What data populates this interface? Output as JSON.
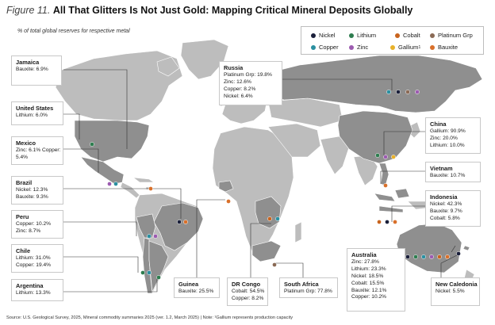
{
  "title": {
    "figure": "Figure 11.",
    "main": "All That Glitters Is Not Just Gold: Mapping Critical Mineral Deposits Globally"
  },
  "subtitle": "% of total global reserves for respective metal",
  "legend": [
    {
      "label": "Nickel",
      "color": "#1a1f3a"
    },
    {
      "label": "Lithium",
      "color": "#2e7d4f"
    },
    {
      "label": "Cobalt",
      "color": "#c8641e"
    },
    {
      "label": "Platinum Grp",
      "color": "#8a6a55"
    },
    {
      "label": "Copper",
      "color": "#2a8fa0"
    },
    {
      "label": "Zinc",
      "color": "#9c5bb0"
    },
    {
      "label": "Gallium",
      "color": "#e8b12a",
      "sup": "1"
    },
    {
      "label": "Bauxite",
      "color": "#d9702a"
    }
  ],
  "countries": [
    {
      "name": "Jamaica",
      "lines": [
        "Bauxite: 6.9%"
      ]
    },
    {
      "name": "United States",
      "lines": [
        "Lithium: 6.0%"
      ]
    },
    {
      "name": "Mexico",
      "lines": [
        "Zinc: 6.1% Copper:",
        "5.4%"
      ]
    },
    {
      "name": "Brazil",
      "lines": [
        "Nickel: 12.3%",
        "Bauxite: 9.3%"
      ]
    },
    {
      "name": "Peru",
      "lines": [
        "Copper: 10.2%",
        "Zinc: 8.7%"
      ]
    },
    {
      "name": "Chile",
      "lines": [
        "Lithium: 31.0%",
        "Copper: 19.4%"
      ]
    },
    {
      "name": "Argentina",
      "lines": [
        "Lithium: 13.3%"
      ]
    },
    {
      "name": "Russia",
      "lines": [
        "Platinum Grp: 19.8%",
        "Zinc: 12.6%",
        "Copper: 8.2%",
        "Nickel: 6.4%"
      ]
    },
    {
      "name": "China",
      "lines": [
        "Gallium: 90.9%",
        "Zinc: 20.0%",
        "Lithium: 10.0%"
      ]
    },
    {
      "name": "Vietnam",
      "lines": [
        "Bauxite: 10.7%"
      ]
    },
    {
      "name": "Indonesia",
      "lines": [
        "Nickel: 42.3%",
        "Bauxite: 9.7%",
        "Cobalt: 5.8%"
      ]
    },
    {
      "name": "Guinea",
      "lines": [
        "Bauxite: 25.5%"
      ]
    },
    {
      "name": "DR Congo",
      "lines": [
        "Cobalt: 54.5%",
        "Copper: 8.2%"
      ]
    },
    {
      "name": "South Africa",
      "lines": [
        "Platinum Grp: 77.8%"
      ]
    },
    {
      "name": "Australia",
      "lines": [
        "Zinc: 27.8%",
        "Lithium: 23.3%",
        "Nickel: 18.5%",
        "Cobalt: 15.5%",
        "Bauxite: 12.1%",
        "Copper: 10.2%"
      ]
    },
    {
      "name": "New Caledonia",
      "lines": [
        "Nickel: 5.5%"
      ]
    }
  ],
  "source": "Source: U.S. Geological Survey, 2025, Mineral commodity summaries 2025 (ver. 1.2, March 2025) | Note: ¹Gallium represents production capacity"
}
